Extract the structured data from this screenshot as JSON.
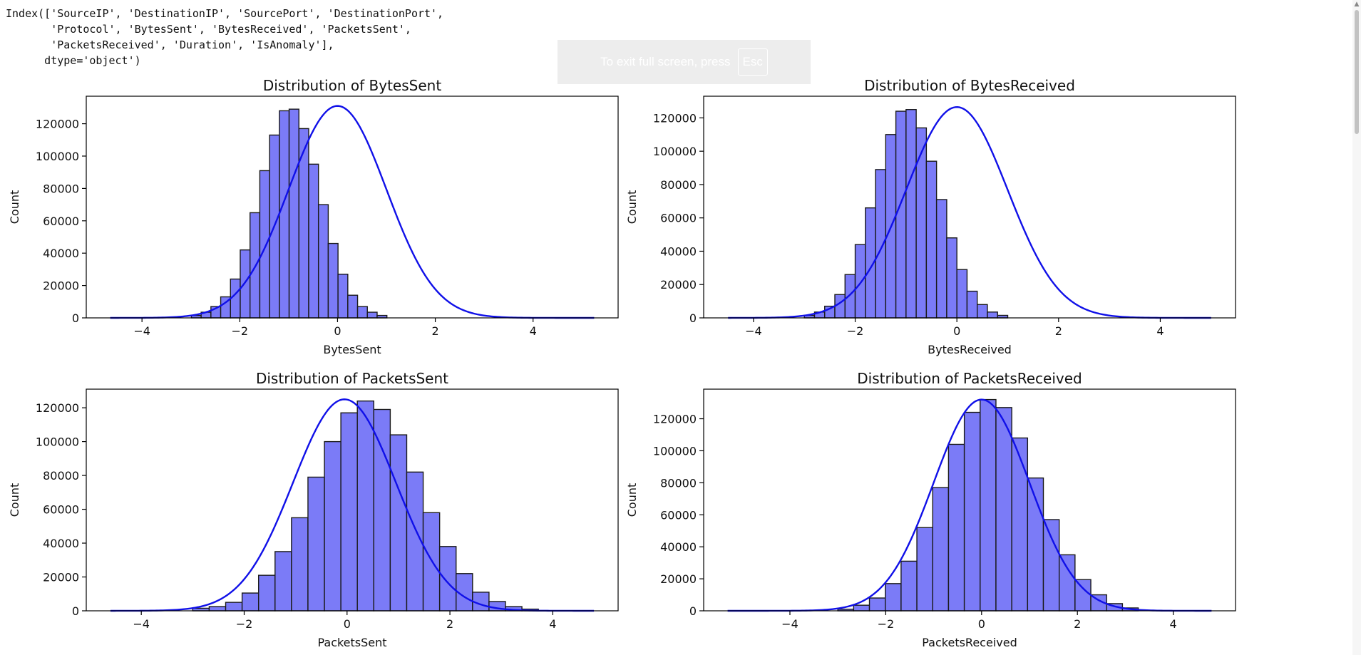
{
  "code_output": {
    "lines": [
      "Index(['SourceIP', 'DestinationIP', 'SourcePort', 'DestinationPort',",
      "       'Protocol', 'BytesSent', 'BytesReceived', 'PacketsSent',",
      "       'PacketsReceived', 'Duration', 'IsAnomaly'],",
      "      dtype='object')"
    ]
  },
  "fullscreen_notice": {
    "text": "To exit full screen, press",
    "key": "Esc"
  },
  "theme": {
    "bar_fill": "#7b7bf7",
    "bar_edge": "#1a1a1a",
    "kde_color": "#1010e8",
    "text": "#111111"
  },
  "chart_data": [
    {
      "type": "bar",
      "title": "Distribution of BytesSent",
      "xlabel": "BytesSent",
      "ylabel": "Count",
      "bin_start": -2.99,
      "bin_width": 0.2,
      "values": [
        1500,
        3500,
        7000,
        13000,
        24000,
        42000,
        65000,
        91000,
        113000,
        128000,
        129000,
        117000,
        95000,
        70000,
        46000,
        27000,
        14000,
        7000,
        3500,
        1500
      ],
      "kde_x_range": [
        -4.65,
        5.25
      ],
      "kde_mean": 0.0,
      "kde_peak": 131000,
      "xlim": [
        -5.14,
        5.74
      ],
      "ylim": [
        0,
        137000
      ],
      "xticks": [
        -4,
        -2,
        0,
        2,
        4
      ],
      "yticks": [
        0,
        20000,
        40000,
        60000,
        80000,
        100000,
        120000
      ],
      "grid": false
    },
    {
      "type": "bar",
      "title": "Distribution of BytesReceived",
      "xlabel": "BytesReceived",
      "ylabel": "Count",
      "bin_start": -3.0,
      "bin_width": 0.2,
      "values": [
        1500,
        3500,
        7000,
        14000,
        26000,
        44000,
        66000,
        89000,
        110000,
        124000,
        125000,
        114000,
        94000,
        71000,
        48000,
        29000,
        16000,
        8000,
        3500,
        1500
      ],
      "kde_x_range": [
        -4.5,
        5.0
      ],
      "kde_mean": 0.0,
      "kde_peak": 126500,
      "xlim": [
        -4.98,
        5.48
      ],
      "ylim": [
        0,
        133000
      ],
      "xticks": [
        -4,
        -2,
        0,
        2,
        4
      ],
      "yticks": [
        0,
        20000,
        40000,
        60000,
        80000,
        100000,
        120000
      ],
      "grid": false
    },
    {
      "type": "bar",
      "title": "Distribution of PacketsSent",
      "xlabel": "PacketsSent",
      "ylabel": "Count",
      "bin_start": -3.0,
      "bin_width": 0.32,
      "values": [
        1500,
        2500,
        5000,
        10500,
        21000,
        35000,
        55000,
        79000,
        100000,
        117000,
        124000,
        119000,
        104000,
        82000,
        58000,
        38000,
        22000,
        11000,
        5500,
        2500,
        1000
      ],
      "kde_x_range": [
        -4.6,
        4.8
      ],
      "kde_mean": -0.05,
      "kde_peak": 125000,
      "xlim": [
        -5.07,
        5.27
      ],
      "ylim": [
        0,
        131000
      ],
      "xticks": [
        -4,
        -2,
        0,
        2,
        4
      ],
      "yticks": [
        0,
        20000,
        40000,
        60000,
        80000,
        100000,
        120000
      ],
      "grid": false
    },
    {
      "type": "bar",
      "title": "Distribution of PacketsReceived",
      "xlabel": "PacketsReceived",
      "ylabel": "Count",
      "bin_start": -3.0,
      "bin_width": 0.33,
      "values": [
        1000,
        3500,
        8000,
        17000,
        31000,
        52000,
        77000,
        104000,
        124000,
        132000,
        127000,
        108000,
        83000,
        57000,
        35000,
        19500,
        10000,
        4500,
        1800
      ],
      "kde_x_range": [
        -5.3,
        4.8
      ],
      "kde_mean": 0.0,
      "kde_peak": 132000,
      "xlim": [
        -5.8,
        5.3
      ],
      "ylim": [
        0,
        138500
      ],
      "xticks": [
        -4,
        -2,
        0,
        2,
        4
      ],
      "yticks": [
        0,
        20000,
        40000,
        60000,
        80000,
        100000,
        120000
      ],
      "grid": false
    }
  ]
}
